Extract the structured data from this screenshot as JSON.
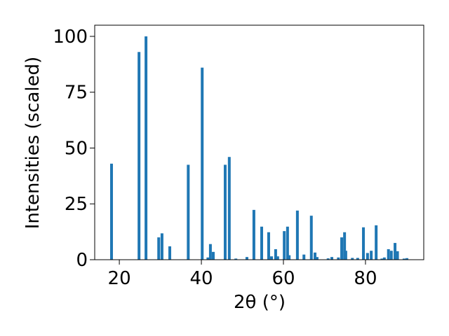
{
  "chart_data": {
    "type": "bar",
    "x_label": "2θ (°)",
    "y_label": "Intensities (scaled)",
    "color": "#1f77b4",
    "x": [
      18.1,
      24.8,
      26.5,
      29.6,
      30.4,
      32.3,
      36.8,
      40.2,
      41.6,
      42.2,
      42.9,
      45.8,
      46.8,
      48.4,
      51.1,
      52.8,
      54.7,
      56.4,
      57.1,
      58.1,
      58.6,
      60.2,
      61.0,
      61.4,
      63.4,
      65.0,
      66.8,
      67.7,
      68.2,
      70.9,
      71.8,
      73.4,
      74.2,
      74.9,
      75.2,
      76.8,
      78.1,
      79.5,
      80.5,
      81.4,
      82.6,
      84.0,
      84.6,
      85.6,
      86.3,
      87.2,
      87.8,
      89.4,
      90.1
    ],
    "values": [
      43,
      93,
      100,
      10,
      11.8,
      6,
      42.5,
      86,
      1,
      7,
      3.5,
      42.5,
      46,
      0.5,
      1.2,
      22.3,
      14.8,
      12.3,
      1.5,
      4.7,
      1.5,
      12.8,
      14.8,
      2,
      22,
      2.3,
      19.7,
      3.2,
      1.2,
      0.6,
      1.2,
      1,
      10,
      12.3,
      4,
      0.8,
      0.8,
      14.5,
      3,
      4,
      15.4,
      0.5,
      1,
      4.7,
      4,
      7.5,
      3.8,
      0.5,
      0.7
    ],
    "xlim": [
      14.0,
      94.2
    ],
    "ylim": [
      0,
      105
    ],
    "xticks": [
      20,
      40,
      60,
      80
    ],
    "yticks": [
      0,
      25,
      50,
      75,
      100
    ]
  }
}
